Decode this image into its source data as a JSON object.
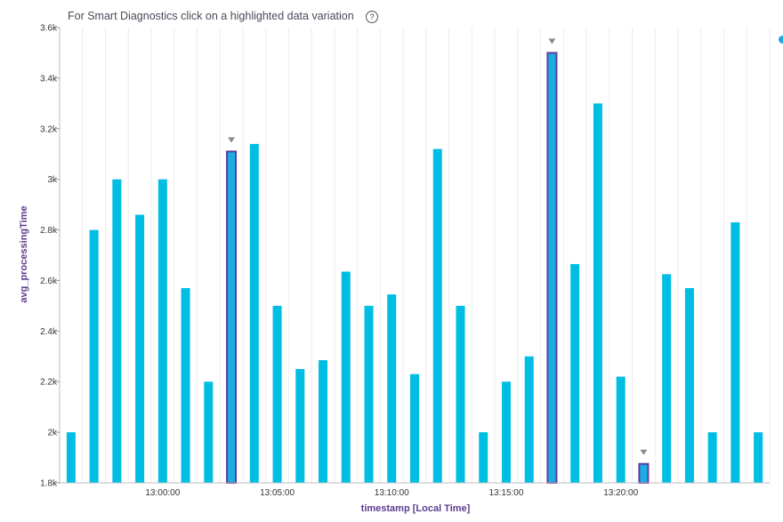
{
  "header": {
    "banner_text": "For Smart Diagnostics click on a highlighted data variation",
    "help_icon": "?"
  },
  "colors": {
    "bar": "#00bde3",
    "highlight_fill": "#1aaee5",
    "highlight_stroke": "#5b3d9c",
    "marker": "#8a8a8a",
    "axis_title": "#5c3d8f",
    "legend_dot": "#2aa3d8"
  },
  "chart_data": {
    "type": "bar",
    "title": "",
    "xlabel": "timestamp [Local Time]",
    "ylabel": "avg_processingTime",
    "ylim": [
      1800,
      3600
    ],
    "yticks": [
      1800,
      2000,
      2200,
      2400,
      2600,
      2800,
      3000,
      3200,
      3400,
      3600
    ],
    "ytick_labels": [
      "1.8k",
      "2k",
      "2.2k",
      "2.4k",
      "2.6k",
      "2.8k",
      "3k",
      "3.2k",
      "3.4k",
      "3.6k"
    ],
    "x_start": "12:56:00",
    "x_step_minutes": 1,
    "xtick_labels": [
      {
        "label": "13:00:00",
        "index": 4.5
      },
      {
        "label": "13:05:00",
        "index": 9.5
      },
      {
        "label": "13:10:00",
        "index": 14.5
      },
      {
        "label": "13:15:00",
        "index": 19.5
      },
      {
        "label": "13:20:00",
        "index": 24.5
      }
    ],
    "values": [
      2000,
      2800,
      3000,
      2860,
      3000,
      2570,
      2200,
      3110,
      3140,
      2500,
      2250,
      2285,
      2635,
      2500,
      2545,
      2230,
      3120,
      2500,
      2000,
      2200,
      2300,
      3500,
      2665,
      3300,
      2220,
      1875,
      2625,
      2570,
      2000,
      2830,
      2000
    ],
    "highlighted_indices": [
      7,
      21,
      25
    ],
    "grid": "vertical-minor",
    "legend": "none"
  }
}
